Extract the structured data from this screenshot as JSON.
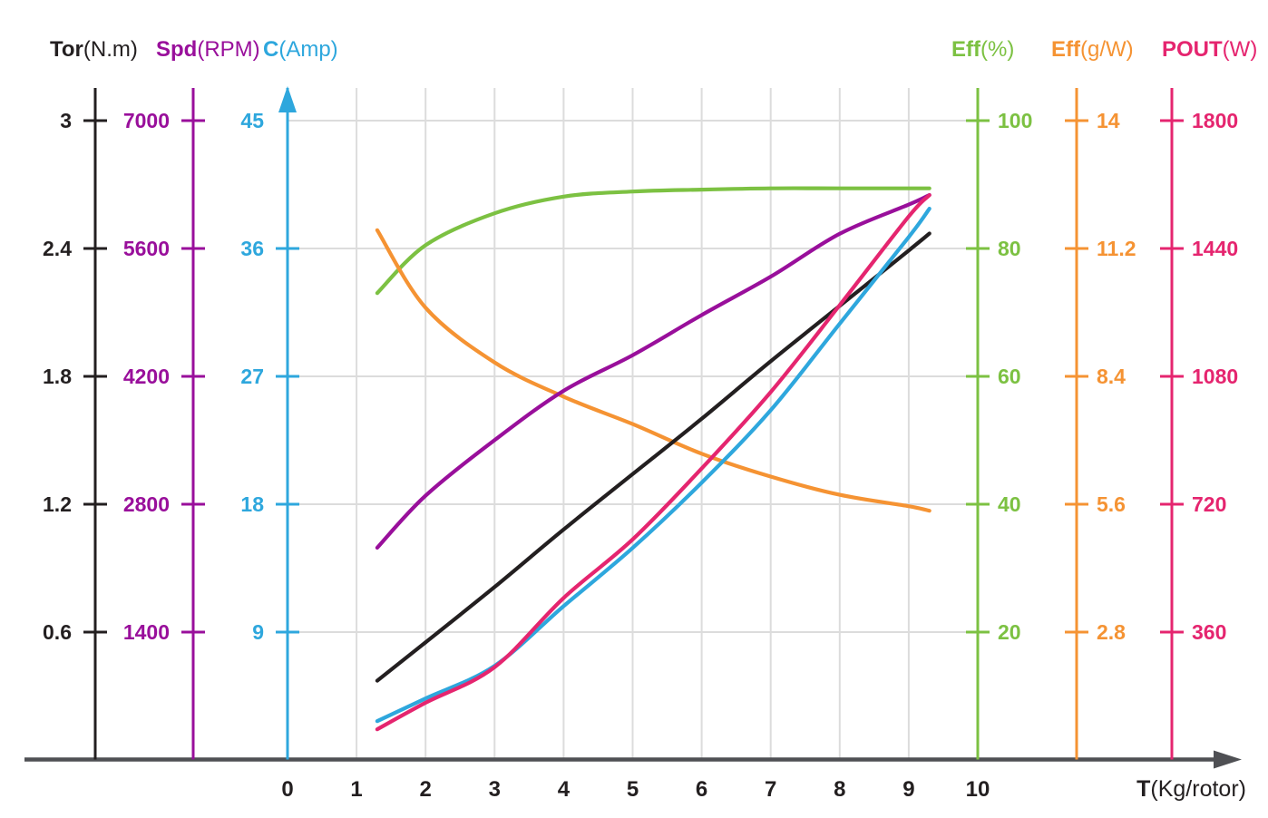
{
  "chart_data": {
    "type": "line",
    "title": "",
    "x_axis": {
      "name": "T",
      "unit": "(Kg/rotor)",
      "tick_labels": [
        "0",
        "1",
        "2",
        "3",
        "4",
        "5",
        "6",
        "7",
        "8",
        "9",
        "10"
      ],
      "range": [
        0,
        10
      ],
      "axis_color": "#4f5054",
      "label_color": "#231f20"
    },
    "grid": {
      "on": true,
      "color": "#dcdcdc"
    },
    "samples_T": [
      1.3,
      2,
      3,
      4,
      5,
      6,
      7,
      8,
      9,
      9.3
    ],
    "series": [
      {
        "id": "eff_pct",
        "name": "Eff",
        "unit": "(%)",
        "color": "#7cc142",
        "side": "right",
        "max": 100,
        "arrow_top": false,
        "tick_labels": [
          "100",
          "80",
          "60",
          "40",
          "20"
        ],
        "values": [
          73,
          80.5,
          85.5,
          88.1,
          88.9,
          89.2,
          89.4,
          89.4,
          89.4,
          89.4
        ]
      },
      {
        "id": "eff_gw",
        "name": "Eff",
        "unit": "(g/W)",
        "color": "#f59333",
        "side": "right",
        "max": 14,
        "arrow_top": false,
        "tick_labels": [
          "14",
          "11.2",
          "8.4",
          "5.6",
          "2.8"
        ],
        "values": [
          11.6,
          9.9,
          8.7,
          7.95,
          7.35,
          6.7,
          6.2,
          5.8,
          5.55,
          5.45
        ]
      },
      {
        "id": "tor",
        "name": "Tor",
        "unit": "(N.m)",
        "color": "#231f20",
        "side": "left",
        "max": 3,
        "arrow_top": false,
        "tick_labels": [
          "3",
          "2.4",
          "1.8",
          "1.2",
          "0.6"
        ],
        "values": [
          0.37,
          0.55,
          0.81,
          1.08,
          1.34,
          1.6,
          1.87,
          2.13,
          2.39,
          2.47
        ]
      },
      {
        "id": "spd",
        "name": "Spd",
        "unit": "(RPM)",
        "color": "#990f9b",
        "side": "left",
        "max": 7000,
        "arrow_top": false,
        "tick_labels": [
          "7000",
          "5600",
          "4200",
          "2800",
          "1400"
        ],
        "values": [
          2320,
          2890,
          3500,
          4040,
          4430,
          4870,
          5290,
          5760,
          6080,
          6185
        ]
      },
      {
        "id": "current",
        "name": "C",
        "unit": "(Amp)",
        "color": "#2ea7dd",
        "side": "left",
        "max": 45,
        "arrow_top": true,
        "tick_labels": [
          "45",
          "36",
          "27",
          "18",
          "9"
        ],
        "values": [
          2.7,
          4.3,
          6.6,
          10.8,
          14.9,
          19.5,
          24.6,
          30.7,
          36.8,
          38.8
        ]
      },
      {
        "id": "pout",
        "name": "POUT",
        "unit": "(W)",
        "color": "#e5256f",
        "side": "right",
        "max": 1800,
        "arrow_top": false,
        "tick_labels": [
          "1800",
          "1440",
          "1080",
          "720",
          "360"
        ],
        "values": [
          85,
          160,
          260,
          455,
          620,
          820,
          1035,
          1280,
          1530,
          1590
        ]
      }
    ]
  }
}
